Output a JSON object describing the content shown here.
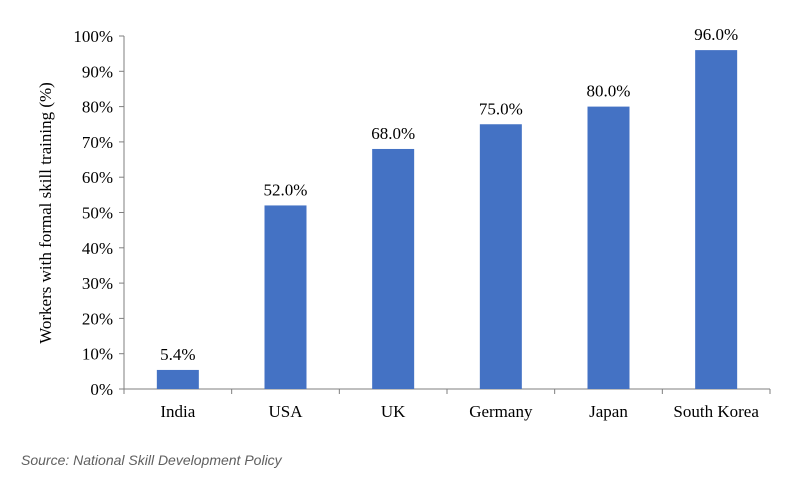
{
  "chart_data": {
    "type": "bar",
    "categories": [
      "India",
      "USA",
      "UK",
      "Germany",
      "Japan",
      "South Korea"
    ],
    "values": [
      5.4,
      52.0,
      68.0,
      75.0,
      80.0,
      96.0
    ],
    "data_labels": [
      "5.4%",
      "52.0%",
      "68.0%",
      "75.0%",
      "80.0%",
      "96.0%"
    ],
    "title": "",
    "xlabel": "",
    "ylabel": "Workers with formal skill training (%)",
    "ylim": [
      0,
      100
    ],
    "yticks": [
      0,
      10,
      20,
      30,
      40,
      50,
      60,
      70,
      80,
      90,
      100
    ],
    "ytick_labels": [
      "0%",
      "10%",
      "20%",
      "30%",
      "40%",
      "50%",
      "60%",
      "70%",
      "80%",
      "90%",
      "100%"
    ],
    "grid": false,
    "bar_color": "#4472C4"
  },
  "source": "Source: National Skill Development Policy"
}
